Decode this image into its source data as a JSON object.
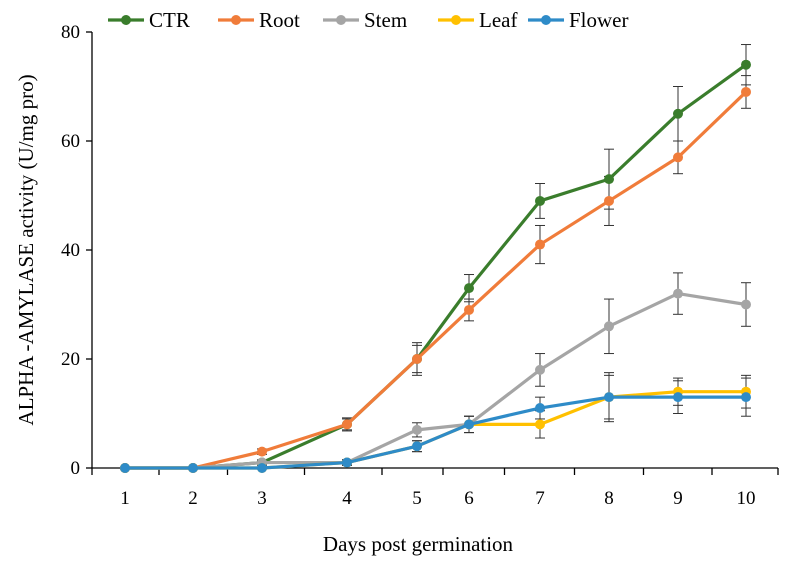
{
  "chart_data": {
    "type": "line",
    "title": "",
    "xlabel": "Days post germination",
    "ylabel": "ALPHA -AMYLASE  activity (U/mg pro)",
    "x": [
      1,
      2,
      3,
      4,
      5,
      6,
      7,
      8,
      9,
      10
    ],
    "ylim": [
      0,
      80
    ],
    "yticks": [
      "0",
      "20",
      "40",
      "60",
      "80"
    ],
    "xticks": [
      "1",
      "2",
      "3",
      "4",
      "5",
      "6",
      "7",
      "8",
      "9",
      "10"
    ],
    "legend_position": "top",
    "grid": false,
    "series": [
      {
        "name": "CTR",
        "color": "#3a7d2c",
        "values": [
          0,
          0,
          1,
          8,
          20,
          33,
          49,
          53,
          65,
          74
        ],
        "errors": [
          0,
          0,
          0.5,
          1.2,
          2.5,
          2.5,
          3.2,
          5.5,
          5,
          3.7
        ]
      },
      {
        "name": "Root",
        "color": "#f07c3a",
        "values": [
          0,
          0,
          3,
          8,
          20,
          29,
          41,
          49,
          57,
          69
        ],
        "errors": [
          0,
          0,
          0.5,
          1,
          3,
          2,
          3.5,
          4.5,
          3,
          3
        ]
      },
      {
        "name": "Stem",
        "color": "#a5a5a5",
        "values": [
          0,
          0,
          1,
          1,
          7,
          8,
          18,
          26,
          32,
          30
        ],
        "errors": [
          0,
          0,
          0.3,
          0.5,
          1.3,
          1.5,
          3,
          5,
          3.8,
          4
        ]
      },
      {
        "name": "Leaf",
        "color": "#ffc000",
        "values": [
          0,
          0,
          0,
          1,
          4,
          8,
          8,
          13,
          14,
          14
        ],
        "errors": [
          0,
          0,
          0,
          0.5,
          1,
          1.5,
          2.5,
          4,
          2.5,
          3
        ]
      },
      {
        "name": "Flower",
        "color": "#2e8bc8",
        "values": [
          0,
          0,
          0,
          1,
          4,
          8,
          11,
          13,
          13,
          13
        ],
        "errors": [
          0,
          0,
          0,
          0.5,
          1,
          1.5,
          2,
          4.5,
          3,
          3.5
        ]
      }
    ]
  }
}
